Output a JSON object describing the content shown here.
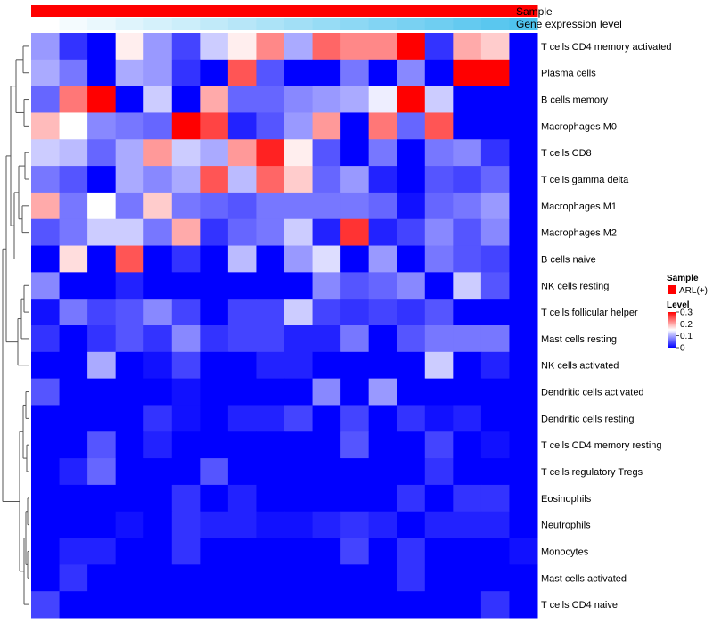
{
  "chart_data": {
    "type": "heatmap",
    "title": "",
    "rows": [
      "T cells CD4 memory activated",
      "Plasma cells",
      "B cells memory",
      "Macrophages M0",
      "T cells CD8",
      "T cells gamma delta",
      "Macrophages M1",
      "Macrophages M2",
      "B cells naive",
      "NK cells resting",
      "T cells follicular helper",
      "Mast cells resting",
      "NK cells activated",
      "Dendritic cells activated",
      "Dendritic cells resting",
      "T cells CD4 memory resting",
      "T cells regulatory  Tregs",
      "Eosinophils",
      "Neutrophils",
      "Monocytes",
      "Mast cells activated",
      "T cells CD4 naive"
    ],
    "column_count": 18,
    "values": [
      [
        0.09,
        0.03,
        0.0,
        0.16,
        0.09,
        0.04,
        0.12,
        0.16,
        0.22,
        0.1,
        0.24,
        0.22,
        0.22,
        0.3,
        0.03,
        0.2,
        0.18,
        0.0
      ],
      [
        0.1,
        0.07,
        0.0,
        0.1,
        0.09,
        0.03,
        0.0,
        0.25,
        0.05,
        0.0,
        0.0,
        0.07,
        0.0,
        0.08,
        0.0,
        0.3,
        0.3,
        0.0
      ],
      [
        0.06,
        0.23,
        0.3,
        0.0,
        0.12,
        0.0,
        0.2,
        0.06,
        0.06,
        0.08,
        0.09,
        0.1,
        0.14,
        0.3,
        0.12,
        0.0,
        0.0,
        0.0
      ],
      [
        0.19,
        0.15,
        0.08,
        0.07,
        0.06,
        0.3,
        0.26,
        0.02,
        0.05,
        0.09,
        0.21,
        0.0,
        0.23,
        0.06,
        0.25,
        0.0,
        0.0,
        0.0
      ],
      [
        0.12,
        0.11,
        0.06,
        0.1,
        0.21,
        0.12,
        0.1,
        0.21,
        0.28,
        0.16,
        0.05,
        0.0,
        0.07,
        0.0,
        0.07,
        0.08,
        0.03,
        0.0
      ],
      [
        0.07,
        0.05,
        0.0,
        0.1,
        0.08,
        0.1,
        0.25,
        0.11,
        0.24,
        0.18,
        0.06,
        0.09,
        0.02,
        0.0,
        0.05,
        0.04,
        0.06,
        0.0
      ],
      [
        0.2,
        0.07,
        0.15,
        0.07,
        0.18,
        0.07,
        0.06,
        0.05,
        0.07,
        0.07,
        0.07,
        0.07,
        0.06,
        0.01,
        0.06,
        0.07,
        0.09,
        0.0
      ],
      [
        0.05,
        0.07,
        0.12,
        0.12,
        0.07,
        0.2,
        0.03,
        0.06,
        0.07,
        0.12,
        0.02,
        0.27,
        0.02,
        0.04,
        0.08,
        0.05,
        0.08,
        0.0
      ],
      [
        0.0,
        0.17,
        0.0,
        0.25,
        0.0,
        0.03,
        0.0,
        0.11,
        0.0,
        0.09,
        0.13,
        0.0,
        0.09,
        0.0,
        0.07,
        0.05,
        0.04,
        0.0
      ],
      [
        0.08,
        0.0,
        0.0,
        0.02,
        0.0,
        0.0,
        0.0,
        0.0,
        0.0,
        0.0,
        0.08,
        0.05,
        0.06,
        0.08,
        0.0,
        0.12,
        0.05,
        0.0
      ],
      [
        0.01,
        0.07,
        0.04,
        0.05,
        0.08,
        0.04,
        0.0,
        0.04,
        0.04,
        0.12,
        0.04,
        0.03,
        0.04,
        0.03,
        0.05,
        0.0,
        0.0,
        0.0
      ],
      [
        0.03,
        0.0,
        0.03,
        0.05,
        0.03,
        0.08,
        0.03,
        0.04,
        0.04,
        0.02,
        0.02,
        0.07,
        0.0,
        0.05,
        0.07,
        0.07,
        0.07,
        0.0
      ],
      [
        0.0,
        0.0,
        0.1,
        0.0,
        0.01,
        0.04,
        0.0,
        0.0,
        0.02,
        0.02,
        0.0,
        0.0,
        0.0,
        0.0,
        0.12,
        0.0,
        0.02,
        0.0
      ],
      [
        0.05,
        0.0,
        0.0,
        0.0,
        0.0,
        0.01,
        0.0,
        0.0,
        0.0,
        0.0,
        0.08,
        0.0,
        0.09,
        0.0,
        0.0,
        0.0,
        0.0,
        0.0
      ],
      [
        0.0,
        0.0,
        0.0,
        0.0,
        0.03,
        0.01,
        0.0,
        0.02,
        0.02,
        0.04,
        0.0,
        0.04,
        0.0,
        0.03,
        0.01,
        0.02,
        0.0,
        0.0
      ],
      [
        0.0,
        0.0,
        0.05,
        0.0,
        0.02,
        0.0,
        0.0,
        0.0,
        0.0,
        0.0,
        0.0,
        0.05,
        0.0,
        0.0,
        0.04,
        0.0,
        0.01,
        0.0
      ],
      [
        0.0,
        0.02,
        0.06,
        0.0,
        0.0,
        0.0,
        0.05,
        0.0,
        0.0,
        0.0,
        0.0,
        0.0,
        0.0,
        0.0,
        0.03,
        0.0,
        0.0,
        0.0
      ],
      [
        0.0,
        0.0,
        0.0,
        0.0,
        0.0,
        0.03,
        0.0,
        0.02,
        0.0,
        0.0,
        0.0,
        0.0,
        0.0,
        0.03,
        0.0,
        0.03,
        0.03,
        0.0
      ],
      [
        0.0,
        0.0,
        0.0,
        0.01,
        0.0,
        0.03,
        0.02,
        0.02,
        0.01,
        0.01,
        0.02,
        0.03,
        0.02,
        0.0,
        0.02,
        0.02,
        0.02,
        0.0
      ],
      [
        0.0,
        0.02,
        0.02,
        0.0,
        0.0,
        0.03,
        0.0,
        0.0,
        0.0,
        0.0,
        0.0,
        0.04,
        0.0,
        0.03,
        0.0,
        0.0,
        0.0,
        0.01
      ],
      [
        0.0,
        0.03,
        0.0,
        0.0,
        0.0,
        0.0,
        0.0,
        0.0,
        0.0,
        0.0,
        0.0,
        0.0,
        0.0,
        0.03,
        0.0,
        0.0,
        0.0,
        0.0
      ],
      [
        0.04,
        0.0,
        0.0,
        0.0,
        0.0,
        0.0,
        0.0,
        0.0,
        0.0,
        0.0,
        0.0,
        0.0,
        0.0,
        0.0,
        0.0,
        0.0,
        0.03,
        0.0
      ]
    ],
    "color_scale": {
      "min": 0,
      "mid": 0.15,
      "max": 0.3,
      "low_color": "#0000ff",
      "mid_color": "#ffffff",
      "high_color": "#ff0000"
    },
    "annotations": [
      {
        "name": "Sample",
        "color": "#ff0000"
      },
      {
        "name": "Gene expression level",
        "values": [
          0.0,
          0.06,
          0.12,
          0.18,
          0.24,
          0.29,
          0.35,
          0.41,
          0.47,
          0.53,
          0.59,
          0.65,
          0.71,
          0.76,
          0.82,
          0.88,
          0.94,
          1.0
        ],
        "low_color": "#ffffff",
        "high_color": "#4fc3ee"
      }
    ],
    "legend": {
      "sample": {
        "title": "Sample",
        "items": [
          {
            "label": "ARL(+)",
            "color": "#ff0000"
          }
        ]
      },
      "level": {
        "title": "Level",
        "ticks": [
          "0.3",
          "0.2",
          "0.1",
          "0"
        ],
        "tick_values": [
          0.3,
          0.2,
          0.1,
          0
        ]
      }
    },
    "row_dendrogram": true
  }
}
